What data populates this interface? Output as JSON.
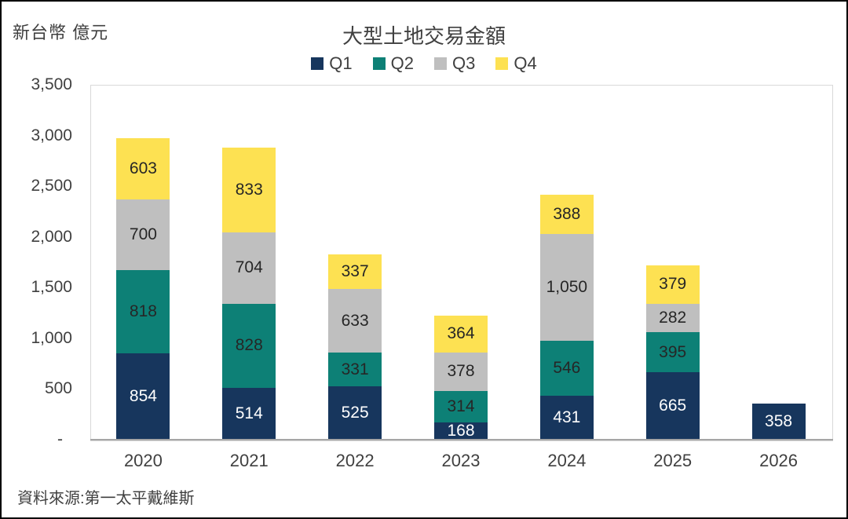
{
  "header": {
    "unit_label": "新台幣 億元",
    "title": "大型土地交易金額"
  },
  "footer": {
    "source": "資料來源:第一太平戴維斯"
  },
  "colors": {
    "q1_navy": "#17365D",
    "q2_teal": "#0D8076",
    "q3_gray": "#BFBFBF",
    "q4_yellow": "#FDE152",
    "axis_line": "#A6A6A6",
    "plot_border": "#D9D9D9",
    "text": "#404040"
  },
  "chart_data": {
    "type": "bar",
    "stacked": true,
    "title": "大型土地交易金額",
    "ylabel": "新台幣 億元",
    "xlabel": "",
    "grid": false,
    "legend_position": "top-center",
    "categories": [
      "2020",
      "2021",
      "2022",
      "2023",
      "2024",
      "2025",
      "2026"
    ],
    "series": [
      {
        "name": "Q1",
        "color": "#17365D",
        "label_color": "#FFFFFF",
        "values": [
          854,
          514,
          525,
          168,
          431,
          665,
          358
        ]
      },
      {
        "name": "Q2",
        "color": "#0D8076",
        "label_color": "#262626",
        "values": [
          818,
          828,
          331,
          314,
          546,
          395,
          null
        ]
      },
      {
        "name": "Q3",
        "color": "#BFBFBF",
        "label_color": "#262626",
        "values": [
          700,
          704,
          633,
          378,
          1050,
          282,
          null
        ]
      },
      {
        "name": "Q4",
        "color": "#FDE152",
        "label_color": "#262626",
        "values": [
          603,
          833,
          337,
          364,
          388,
          379,
          null
        ]
      }
    ],
    "totals": [
      2975,
      2879,
      1826,
      1224,
      2415,
      1721,
      358
    ],
    "ylim": [
      0,
      3500
    ],
    "ytick_step": 500,
    "ytick_labels": [
      "3,500",
      "3,000",
      "2,500",
      "2,000",
      "1,500",
      "1,000",
      "500",
      "-"
    ]
  }
}
